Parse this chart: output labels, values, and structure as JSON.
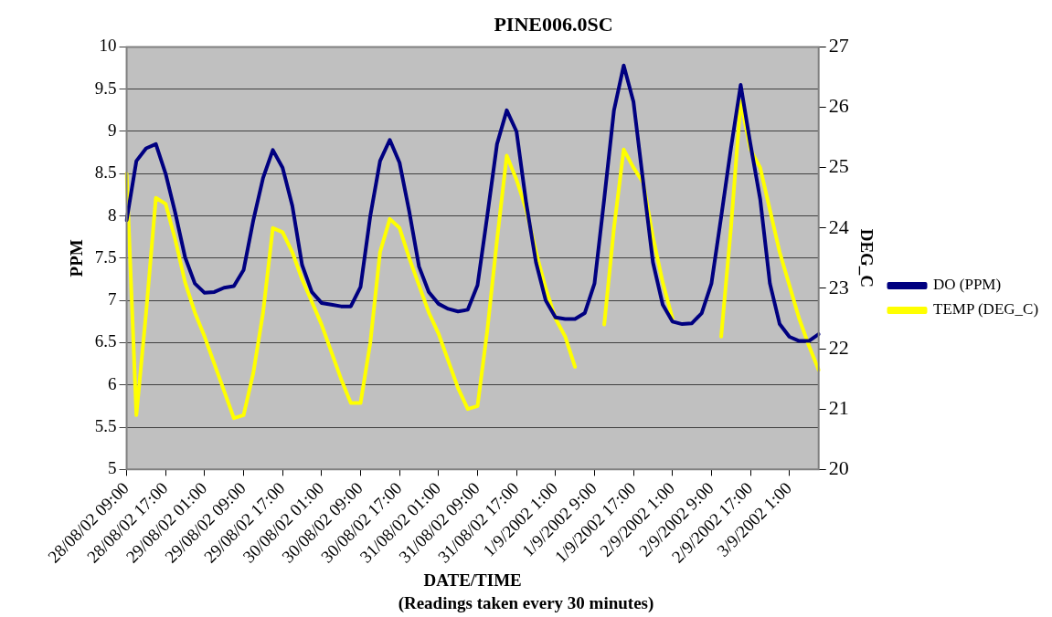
{
  "chart_data": {
    "type": "line",
    "title": "PINE006.0SC",
    "xlabel": "DATE/TIME",
    "ylabel": "PPM",
    "y2label": "DEG_C",
    "annotations": [
      "(Readings taken every 30 minutes)"
    ],
    "categories": [
      "28/08/02 09:00",
      null,
      null,
      null,
      "28/08/02 17:00",
      null,
      null,
      null,
      "29/08/02 01:00",
      null,
      null,
      null,
      "29/08/02 09:00",
      null,
      null,
      null,
      "29/08/02 17:00",
      null,
      null,
      null,
      "30/08/02 01:00",
      null,
      null,
      null,
      "30/08/02 09:00",
      null,
      null,
      null,
      "30/08/02 17:00",
      null,
      null,
      null,
      "31/08/02 01:00",
      null,
      null,
      null,
      "31/08/02 09:00",
      null,
      null,
      null,
      "31/08/02 17:00",
      null,
      null,
      null,
      "1/9/2002 1:00",
      null,
      null,
      null,
      "1/9/2002 9:00",
      null,
      null,
      null,
      "1/9/2002 17:00",
      null,
      null,
      null,
      "2/9/2002 1:00",
      null,
      null,
      null,
      "2/9/2002 9:00",
      null,
      null,
      null,
      "2/9/2002 17:00",
      null,
      null,
      null,
      "3/9/2002 1:00",
      null,
      null,
      null
    ],
    "series": [
      {
        "name": "DO (PPM)",
        "color": "#000080",
        "values": [
          7.95,
          8.65,
          8.8,
          8.85,
          8.5,
          8.03,
          7.51,
          7.2,
          7.09,
          7.1,
          7.15,
          7.17,
          7.36,
          7.95,
          8.45,
          8.78,
          8.57,
          8.12,
          7.42,
          7.1,
          6.97,
          6.95,
          6.93,
          6.93,
          7.16,
          8.0,
          8.65,
          8.9,
          8.63,
          8.05,
          7.4,
          7.1,
          6.96,
          6.9,
          6.87,
          6.89,
          7.18,
          8.0,
          8.85,
          9.25,
          9.0,
          8.15,
          7.45,
          7.0,
          6.8,
          6.78,
          6.78,
          6.85,
          7.2,
          8.2,
          9.25,
          9.78,
          9.35,
          8.4,
          7.45,
          6.95,
          6.75,
          6.72,
          6.73,
          6.85,
          7.2,
          7.99,
          8.8,
          9.55,
          8.85,
          8.2,
          7.2,
          6.72,
          6.57,
          6.52,
          6.52,
          6.6
        ]
      },
      {
        "name": "TEMP (DEG_C)",
        "color": "#ffff00",
        "axis": "y2",
        "values": [
          24.9,
          20.9,
          22.6,
          24.5,
          24.4,
          23.8,
          23.1,
          22.6,
          22.2,
          21.75,
          21.3,
          20.85,
          20.9,
          21.6,
          22.6,
          24.0,
          23.93,
          23.6,
          23.15,
          22.78,
          22.4,
          21.95,
          21.5,
          21.1,
          21.1,
          22.1,
          23.6,
          24.15,
          24.0,
          23.5,
          23.05,
          22.6,
          22.25,
          21.8,
          21.35,
          21.0,
          21.05,
          22.3,
          23.8,
          25.2,
          24.8,
          24.3,
          23.6,
          23.0,
          22.5,
          22.2,
          21.7,
          null,
          null,
          22.4,
          24.0,
          25.3,
          25.0,
          24.75,
          23.85,
          23.1,
          22.5,
          null,
          null,
          null,
          null,
          22.2,
          24.0,
          26.1,
          25.3,
          25.0,
          24.3,
          23.6,
          23.05,
          22.5,
          22.05,
          21.65
        ]
      }
    ],
    "ylim": [
      5,
      10
    ],
    "yticks": [
      5,
      5.5,
      6,
      6.5,
      7,
      7.5,
      8,
      8.5,
      9,
      9.5,
      10
    ],
    "y2lim": [
      20,
      27
    ],
    "y2ticks": [
      20,
      21,
      22,
      23,
      24,
      25,
      26,
      27
    ],
    "grid": "y",
    "legend": "right",
    "marker": "none",
    "line_style": "solid"
  }
}
